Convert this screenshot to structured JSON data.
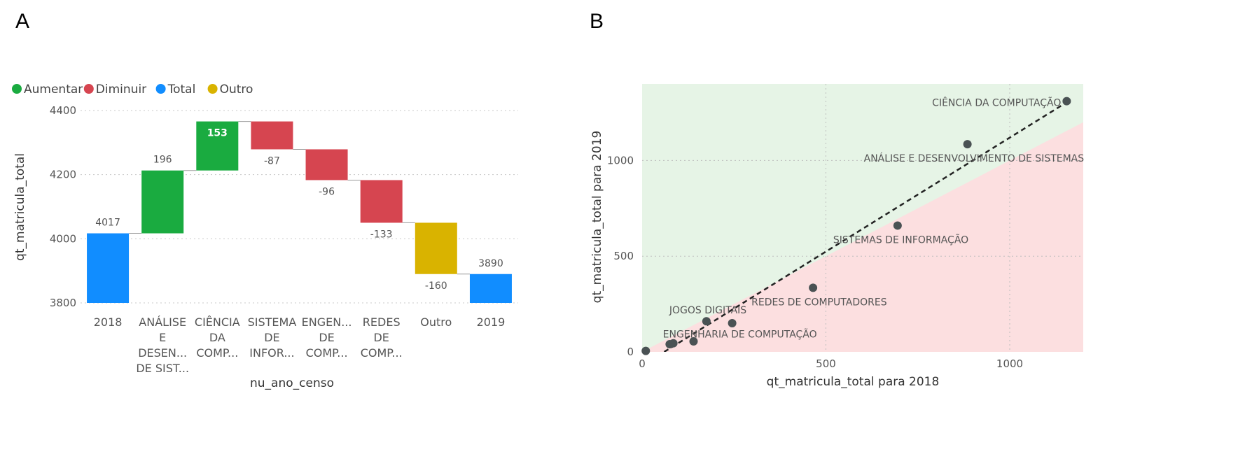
{
  "panels": {
    "a_letter": "A",
    "b_letter": "B"
  },
  "colors": {
    "aumentar": "#1aab40",
    "diminuir": "#d64550",
    "total": "#118dff",
    "outro": "#d9b300",
    "scatter_point": "#4a5254",
    "upper_region": "#e6f4e6",
    "lower_region": "#fcdfe0",
    "trend": "#222222",
    "grid": "#c8c8c8",
    "text": "#555555",
    "axis_title": "#333333"
  },
  "chart_data": [
    {
      "type": "bar",
      "subtype": "waterfall",
      "xlabel": "nu_ano_censo",
      "ylabel": "qt_matricula_total",
      "ylim": [
        3800,
        4400
      ],
      "yticks": [
        3800,
        4000,
        4200,
        4400
      ],
      "grid": true,
      "legend_position": "top-left",
      "legend": [
        {
          "label": "Aumentar",
          "color_key": "aumentar"
        },
        {
          "label": "Diminuir",
          "color_key": "diminuir"
        },
        {
          "label": "Total",
          "color_key": "total"
        },
        {
          "label": "Outro",
          "color_key": "outro"
        }
      ],
      "bars": [
        {
          "category": [
            "2018"
          ],
          "kind": "total",
          "start": 3800,
          "end": 4017,
          "label": "4017"
        },
        {
          "category": [
            "ANÁLISE",
            "E",
            "DESEN...",
            "DE SIST..."
          ],
          "kind": "aumentar",
          "start": 4017,
          "end": 4213,
          "label": "196"
        },
        {
          "category": [
            "CIÊNCIA",
            "DA",
            "COMP..."
          ],
          "kind": "aumentar",
          "start": 4213,
          "end": 4366,
          "label": "153"
        },
        {
          "category": [
            "SISTEMA",
            "DE",
            "INFOR..."
          ],
          "kind": "diminuir",
          "start": 4366,
          "end": 4279,
          "label": "-87"
        },
        {
          "category": [
            "ENGEN...",
            "DE",
            "COMP..."
          ],
          "kind": "diminuir",
          "start": 4279,
          "end": 4183,
          "label": "-96"
        },
        {
          "category": [
            "REDES",
            "DE",
            "COMP..."
          ],
          "kind": "diminuir",
          "start": 4183,
          "end": 4050,
          "label": "-133"
        },
        {
          "category": [
            "Outro"
          ],
          "kind": "outro",
          "start": 4050,
          "end": 3890,
          "label": "-160"
        },
        {
          "category": [
            "2019"
          ],
          "kind": "total",
          "start": 3800,
          "end": 3890,
          "label": "3890"
        }
      ]
    },
    {
      "type": "scatter",
      "xlabel": "qt_matricula_total para 2018",
      "ylabel": "qt_matricula_total para 2019",
      "xlim": [
        0,
        1200
      ],
      "ylim": [
        0,
        1400
      ],
      "xticks": [
        0,
        500,
        1000
      ],
      "yticks": [
        0,
        500,
        1000
      ],
      "grid": true,
      "trendline": {
        "x": [
          60,
          1160
        ],
        "y": [
          0,
          1310
        ]
      },
      "points": [
        {
          "x": 1155,
          "y": 1310,
          "label": "CIÊNCIA DA COMPUTAÇÃO"
        },
        {
          "x": 885,
          "y": 1085,
          "label": "ANÁLISE E DESENVOLVIMENTO DE SISTEMAS"
        },
        {
          "x": 695,
          "y": 660,
          "label": "SISTEMAS DE INFORMAÇÃO"
        },
        {
          "x": 465,
          "y": 335,
          "label": "REDES DE COMPUTADORES"
        },
        {
          "x": 175,
          "y": 160,
          "label": "JOGOS DIGITAIS"
        },
        {
          "x": 245,
          "y": 150,
          "label": ""
        },
        {
          "x": 140,
          "y": 55,
          "label": ""
        },
        {
          "x": 85,
          "y": 45,
          "label": "ENGENHARIA DE COMPUTAÇÃO"
        },
        {
          "x": 75,
          "y": 40,
          "label": ""
        },
        {
          "x": 10,
          "y": 5,
          "label": ""
        }
      ]
    }
  ]
}
